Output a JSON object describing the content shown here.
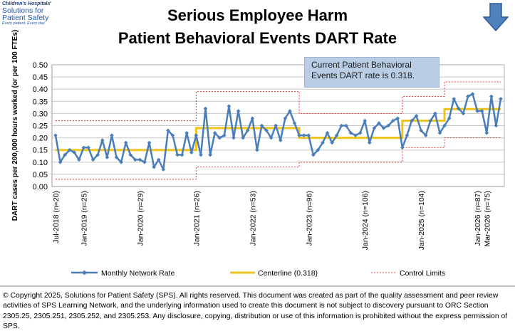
{
  "logo": {
    "top": "Children's Hospitals'",
    "line1": "Solutions for",
    "line2": "Patient Safety",
    "tagline": "Every patient. Every day."
  },
  "chart_data": {
    "type": "line",
    "title": "Serious Employee Harm",
    "subtitle": "Patient Behavioral Events DART Rate",
    "ylabel": "DART cases per 200,000 hours worked (or per 100 FTEs)",
    "xlabel": "",
    "ylim": [
      0,
      0.5
    ],
    "yticks": [
      "0.00",
      "0.05",
      "0.10",
      "0.15",
      "0.20",
      "0.25",
      "0.30",
      "0.35",
      "0.40",
      "0.45",
      "0.50"
    ],
    "grid": true,
    "legend_position": "bottom",
    "x_tick_labels": [
      {
        "index": 0,
        "label": "Jul-2018 (n=20)"
      },
      {
        "index": 6,
        "label": "Jan-2019 (n=25)"
      },
      {
        "index": 18,
        "label": "Jan-2020 (n=29)"
      },
      {
        "index": 30,
        "label": "Jan-2021 (n=26)"
      },
      {
        "index": 42,
        "label": "Jan-2022 (n=53)"
      },
      {
        "index": 54,
        "label": "Jan-2023 (n=96)"
      },
      {
        "index": 66,
        "label": "Jan-2024 (n=106)"
      },
      {
        "index": 78,
        "label": "Jan-2025 (n=104)"
      },
      {
        "index": 90,
        "label": "Jan-2026 (n=87)"
      },
      {
        "index": 92,
        "label": "Mar-2026 (n=75)"
      }
    ],
    "series": [
      {
        "name": "Monthly Network Rate",
        "color": "#4a7ebb",
        "values": [
          0.21,
          0.1,
          0.13,
          0.15,
          0.14,
          0.11,
          0.16,
          0.16,
          0.11,
          0.13,
          0.19,
          0.12,
          0.21,
          0.12,
          0.1,
          0.18,
          0.13,
          0.11,
          0.11,
          0.1,
          0.18,
          0.08,
          0.11,
          0.07,
          0.23,
          0.21,
          0.13,
          0.13,
          0.22,
          0.14,
          0.21,
          0.13,
          0.32,
          0.13,
          0.22,
          0.2,
          0.21,
          0.33,
          0.2,
          0.31,
          0.2,
          0.23,
          0.28,
          0.15,
          0.25,
          0.23,
          0.2,
          0.25,
          0.19,
          0.28,
          0.31,
          0.26,
          0.21,
          0.21,
          0.21,
          0.13,
          0.15,
          0.18,
          0.22,
          0.18,
          0.21,
          0.25,
          0.25,
          0.22,
          0.21,
          0.22,
          0.27,
          0.18,
          0.24,
          0.26,
          0.24,
          0.25,
          0.27,
          0.28,
          0.16,
          0.21,
          0.27,
          0.29,
          0.23,
          0.21,
          0.27,
          0.3,
          0.22,
          0.25,
          0.28,
          0.36,
          0.32,
          0.3,
          0.37,
          0.38,
          0.31,
          0.31,
          0.22,
          0.37,
          0.25,
          0.36
        ]
      },
      {
        "name": "Centerline (0.318)",
        "color": "#f0c419",
        "segments": [
          {
            "start": 0,
            "end": 30,
            "value": 0.15
          },
          {
            "start": 30,
            "end": 52,
            "value": 0.24
          },
          {
            "start": 52,
            "end": 74,
            "value": 0.2
          },
          {
            "start": 74,
            "end": 83,
            "value": 0.27
          },
          {
            "start": 83,
            "end": 95,
            "value": 0.318
          }
        ]
      },
      {
        "name": "Control Limits",
        "color": "#e03c3c",
        "upper": [
          {
            "start": 0,
            "end": 30,
            "value": 0.27
          },
          {
            "start": 30,
            "end": 52,
            "value": 0.39
          },
          {
            "start": 52,
            "end": 74,
            "value": 0.3
          },
          {
            "start": 74,
            "end": 83,
            "value": 0.37
          },
          {
            "start": 83,
            "end": 95,
            "value": 0.43
          }
        ],
        "lower": [
          {
            "start": 0,
            "end": 30,
            "value": 0.03
          },
          {
            "start": 30,
            "end": 52,
            "value": 0.08
          },
          {
            "start": 52,
            "end": 74,
            "value": 0.1
          },
          {
            "start": 74,
            "end": 83,
            "value": 0.16
          },
          {
            "start": 83,
            "end": 95,
            "value": 0.2
          }
        ]
      }
    ],
    "annotation": "Current Patient Behavioral Events DART rate is 0.318."
  },
  "callout": {
    "line1": "Current Patient Behavioral",
    "line2": "Events DART rate is 0.318."
  },
  "legend": {
    "monthly": "Monthly Network Rate",
    "centerline": "Centerline (0.318)",
    "limits": "Control Limits"
  },
  "copyright": "© Copyright 2025, Solutions for Patient Safety (SPS).  All rights reserved.  This document was created as part of the quality assessment and peer review activities of SPS Learning Network, and the underlying information used to create this document is not subject to discovery pursuant to ORC Section 2305.25, 2305.251, 2305.252, and 2305.253. Any disclosure, copying, distribution or use of this information is prohibited without the express permission of SPS.",
  "icons": {
    "arrow": "down-arrow-icon"
  },
  "colors": {
    "series": "#4a7ebb",
    "centerline": "#f0c419",
    "limits": "#e03c3c",
    "callout": "#b9cde5",
    "arrow": "#4f81bd"
  }
}
